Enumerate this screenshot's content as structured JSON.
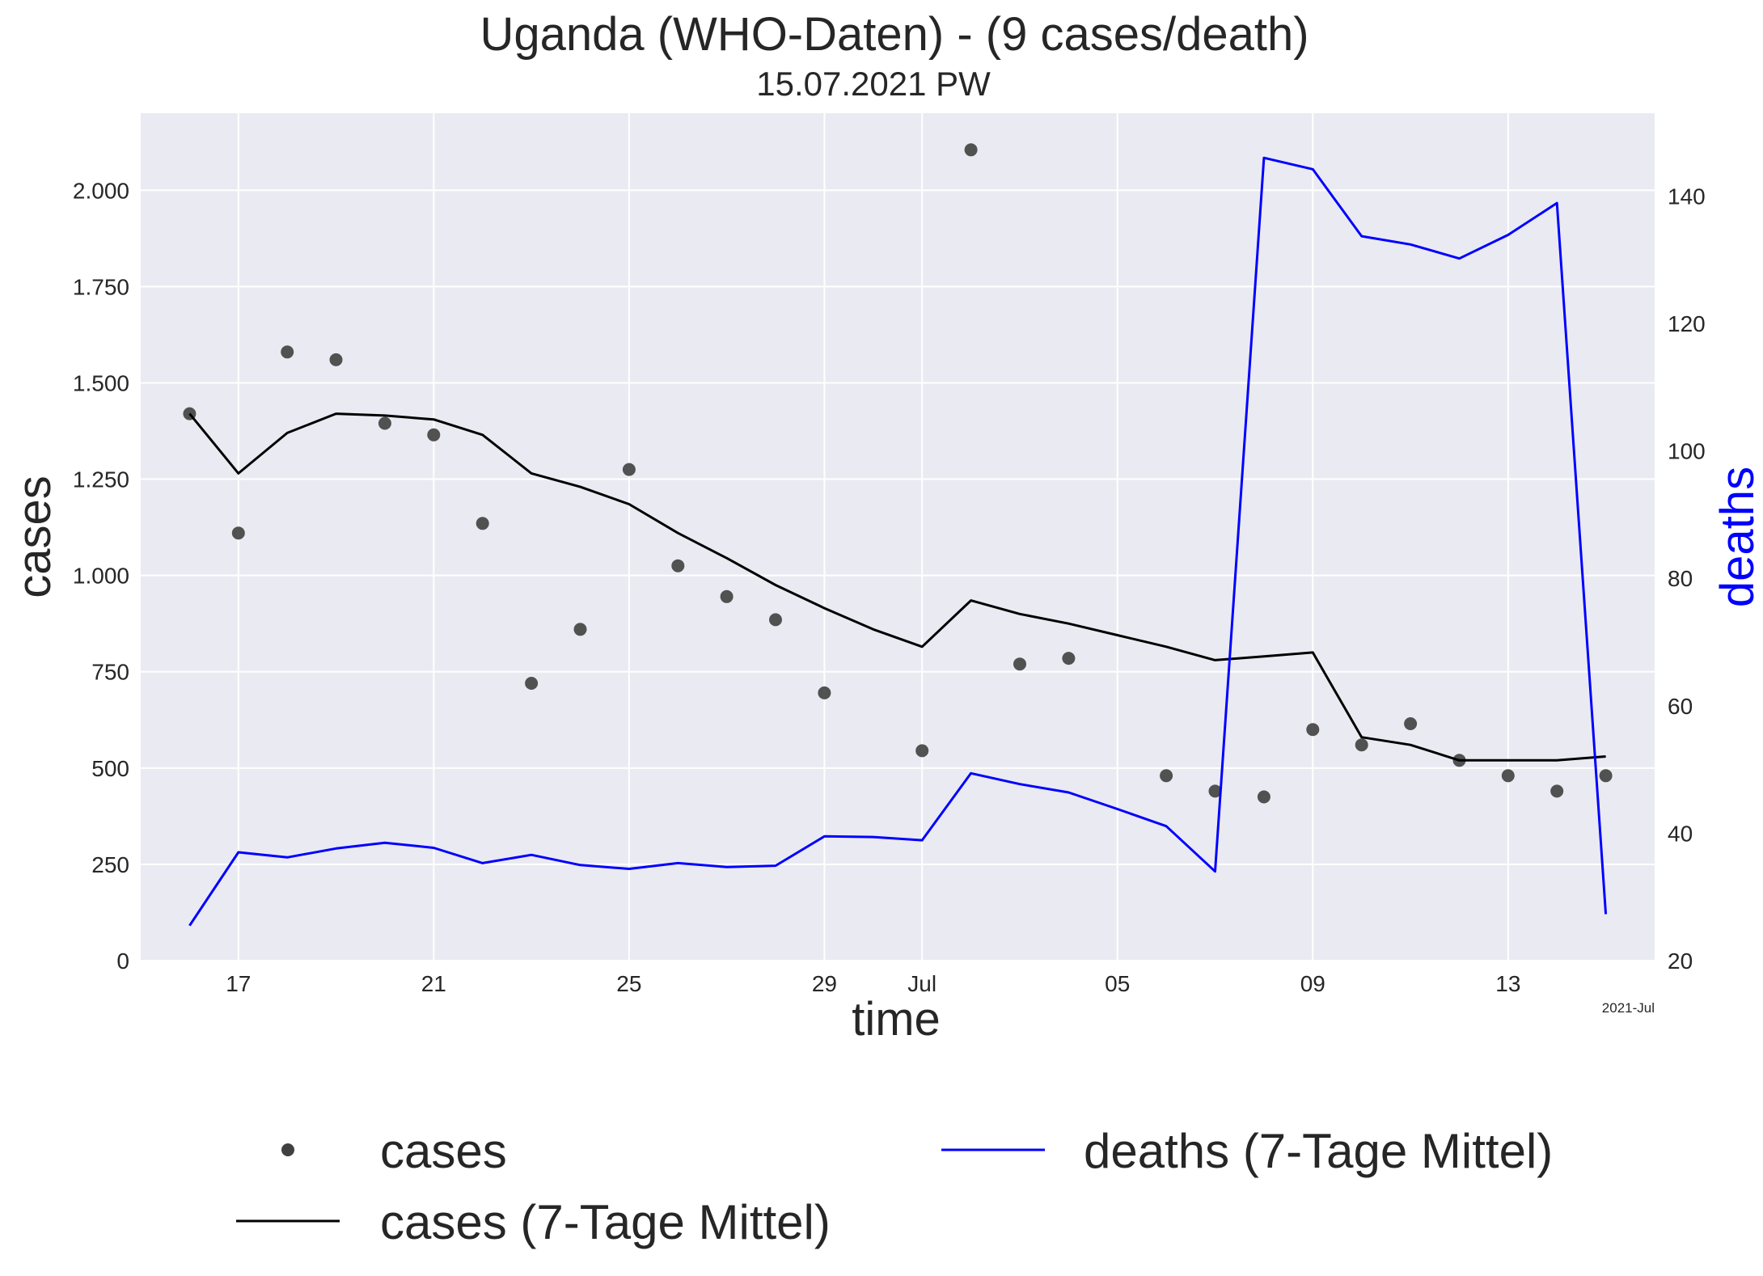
{
  "chart_data": {
    "type": "line",
    "title": "Uganda (WHO-Daten) - (9 cases/death)",
    "subtitle": "15.07.2021 PW",
    "xlabel": "time",
    "ylabel": "cases",
    "ylabel_right": "deaths",
    "x_offset_label": "2021-Jul",
    "x": [
      "2021-06-16",
      "2021-06-17",
      "2021-06-18",
      "2021-06-19",
      "2021-06-20",
      "2021-06-21",
      "2021-06-22",
      "2021-06-23",
      "2021-06-24",
      "2021-06-25",
      "2021-06-26",
      "2021-06-27",
      "2021-06-28",
      "2021-06-29",
      "2021-06-30",
      "2021-07-01",
      "2021-07-02",
      "2021-07-03",
      "2021-07-04",
      "2021-07-05",
      "2021-07-06",
      "2021-07-07",
      "2021-07-08",
      "2021-07-09",
      "2021-07-10",
      "2021-07-11",
      "2021-07-12",
      "2021-07-13",
      "2021-07-14",
      "2021-07-15"
    ],
    "x_ticks": [
      {
        "date": "2021-06-17",
        "label": "17"
      },
      {
        "date": "2021-06-21",
        "label": "21"
      },
      {
        "date": "2021-06-25",
        "label": "25"
      },
      {
        "date": "2021-06-29",
        "label": "29"
      },
      {
        "date": "2021-07-01",
        "label": "Jul"
      },
      {
        "date": "2021-07-05",
        "label": "05"
      },
      {
        "date": "2021-07-09",
        "label": "09"
      },
      {
        "date": "2021-07-13",
        "label": "13"
      }
    ],
    "xlim": [
      "2021-06-15",
      "2021-07-16"
    ],
    "y_left": {
      "lim": [
        0,
        2200
      ],
      "ticks": [
        0,
        250,
        500,
        750,
        1000,
        1250,
        1500,
        1750,
        2000
      ],
      "tick_labels": [
        "0",
        "250",
        "500",
        "750",
        "1.000",
        "1.250",
        "1.500",
        "1.750",
        "2.000"
      ]
    },
    "y_right": {
      "lim": [
        20,
        153
      ],
      "ticks": [
        20,
        40,
        60,
        80,
        100,
        120,
        140
      ],
      "tick_labels": [
        "20",
        "40",
        "60",
        "80",
        "100",
        "120",
        "140"
      ]
    },
    "series": [
      {
        "name": "cases",
        "kind": "scatter",
        "axis": "left",
        "color": "#404040",
        "values": [
          1420,
          1110,
          1580,
          1560,
          1395,
          1365,
          1135,
          720,
          860,
          1275,
          1025,
          945,
          885,
          695,
          null,
          545,
          2105,
          770,
          785,
          null,
          480,
          440,
          425,
          600,
          560,
          615,
          520,
          480,
          440,
          480
        ]
      },
      {
        "name": "cases (7-Tage Mittel)",
        "kind": "line",
        "axis": "left",
        "color": "#000000",
        "values": [
          1420,
          1265,
          1370,
          1420,
          1415,
          1405,
          1365,
          1265,
          1230,
          1185,
          1110,
          1045,
          975,
          915,
          860,
          815,
          935,
          900,
          875,
          845,
          815,
          780,
          790,
          800,
          580,
          560,
          520,
          520,
          520,
          530
        ]
      },
      {
        "name": "deaths (7-Tage Mittel)",
        "kind": "line",
        "axis": "right",
        "color": "#0000ff",
        "values": [
          25.5,
          37.0,
          36.2,
          37.6,
          38.5,
          37.7,
          35.3,
          36.6,
          35.0,
          34.4,
          35.3,
          34.7,
          34.9,
          39.5,
          39.4,
          38.9,
          49.4,
          47.7,
          46.4,
          43.8,
          41.1,
          34.0,
          146.0,
          144.2,
          133.7,
          132.4,
          130.2,
          133.9,
          138.9,
          27.3
        ]
      }
    ],
    "legend": {
      "placement": "bottom",
      "entries": [
        {
          "label": "cases",
          "series": 0
        },
        {
          "label": "cases (7-Tage Mittel)",
          "series": 1
        },
        {
          "label": "deaths (7-Tage Mittel)",
          "series": 2
        }
      ]
    },
    "grid": true,
    "background": "#eaeaf2",
    "right_axis_color": "#0000ff"
  }
}
